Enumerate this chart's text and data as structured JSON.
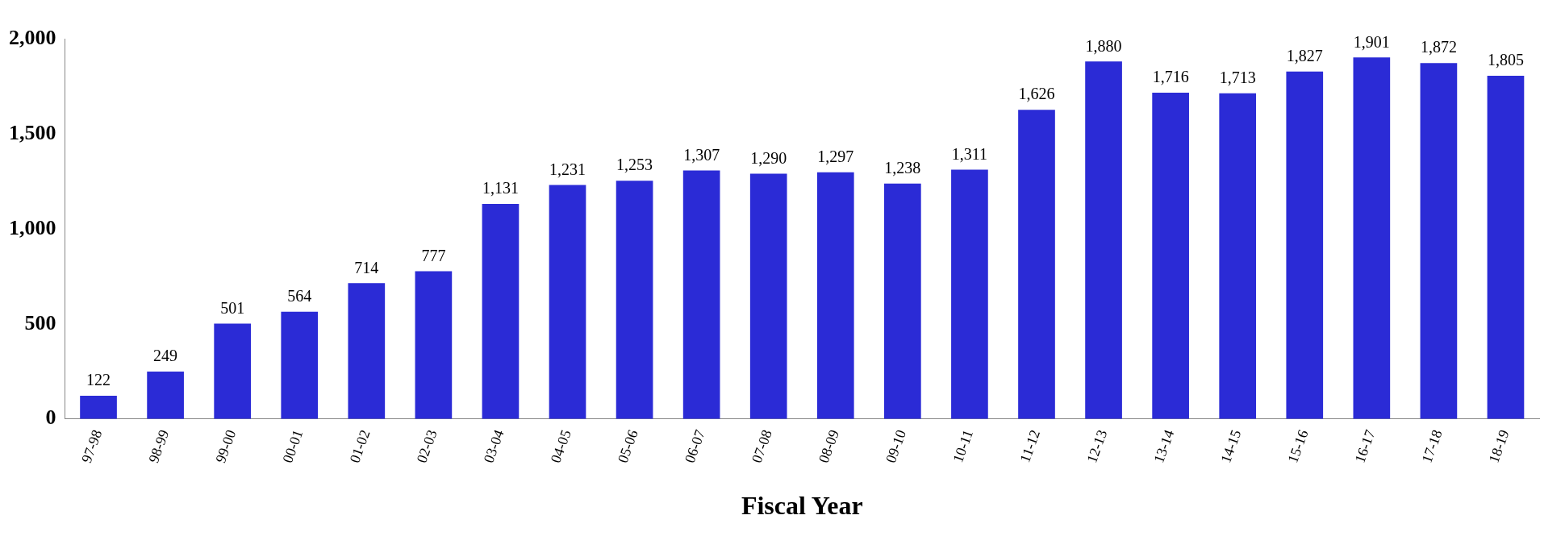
{
  "chart_data": {
    "type": "bar",
    "xlabel": "Fiscal Year",
    "categories": [
      "97-98",
      "98-99",
      "99-00",
      "00-01",
      "01-02",
      "02-03",
      "03-04",
      "04-05",
      "05-06",
      "06-07",
      "07-08",
      "08-09",
      "09-10",
      "10-11",
      "11-12",
      "12-13",
      "13-14",
      "14-15",
      "15-16",
      "16-17",
      "17-18",
      "18-19"
    ],
    "values": [
      122,
      249,
      501,
      564,
      714,
      777,
      1131,
      1231,
      1253,
      1307,
      1290,
      1297,
      1238,
      1311,
      1626,
      1880,
      1716,
      1713,
      1827,
      1901,
      1872,
      1805
    ],
    "value_labels": [
      "122",
      "249",
      "501",
      "564",
      "714",
      "777",
      "1,131",
      "1,231",
      "1,253",
      "1,307",
      "1,290",
      "1,297",
      "1,238",
      "1,311",
      "1,626",
      "1,880",
      "1,716",
      "1,713",
      "1,827",
      "1,901",
      "1,872",
      "1,805"
    ],
    "color": "#2b2bd6",
    "ylim": [
      0,
      2000
    ],
    "yticks": [
      0,
      500,
      {
        "value": 1000,
        "label": "1,000"
      },
      {
        "value": 1500,
        "label": "1,500"
      },
      {
        "value": 2000,
        "label": "2,000"
      }
    ]
  }
}
